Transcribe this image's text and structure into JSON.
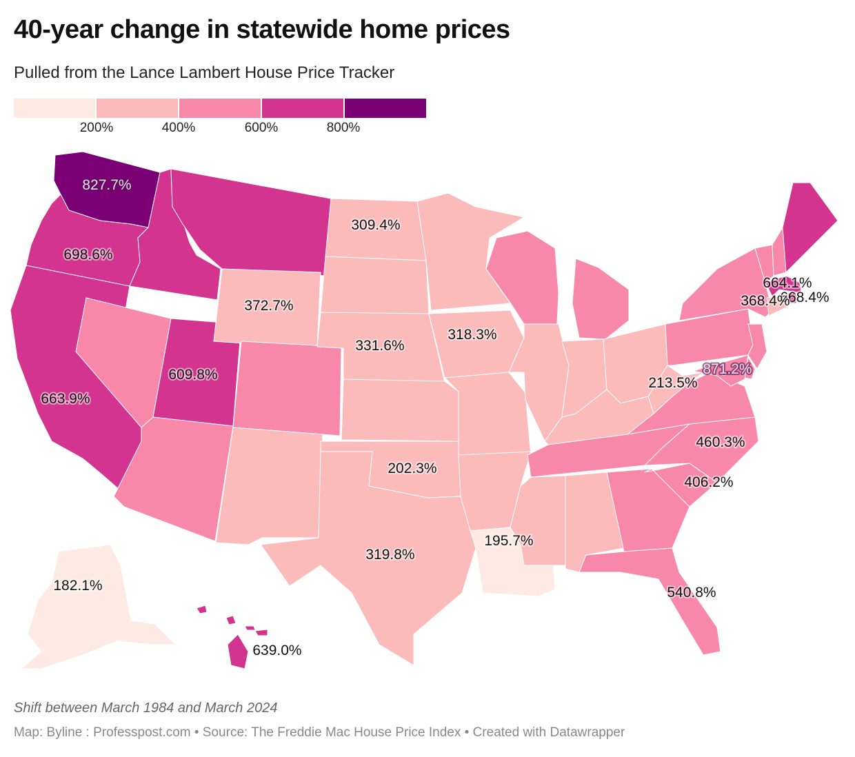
{
  "header": {
    "title": "40-year change in statewide home prices",
    "subtitle": "Pulled from the Lance Lambert House Price Tracker"
  },
  "legend": {
    "bins": [
      {
        "color": "#fdebe3"
      },
      {
        "color": "#fbbbbb"
      },
      {
        "color": "#f788aa"
      },
      {
        "color": "#d3348f"
      },
      {
        "color": "#7b0076"
      }
    ],
    "labels": [
      "200%",
      "400%",
      "600%",
      "800%"
    ]
  },
  "chart_data": {
    "type": "choropleth",
    "title": "40-year change in statewide home prices",
    "subtitle": "Pulled from the Lance Lambert House Price Tracker",
    "unit": "%",
    "bins": [
      0,
      200,
      400,
      600,
      800,
      1000
    ],
    "legend_position": "top-left",
    "labeled_values": [
      {
        "state": "Washington",
        "value": 827.7,
        "label": "827.7%"
      },
      {
        "state": "Oregon",
        "value": 698.6,
        "label": "698.6%"
      },
      {
        "state": "California",
        "value": 663.9,
        "label": "663.9%"
      },
      {
        "state": "Utah",
        "value": 609.8,
        "label": "609.8%"
      },
      {
        "state": "Wyoming",
        "value": 372.7,
        "label": "372.7%"
      },
      {
        "state": "North Dakota",
        "value": 309.4,
        "label": "309.4%"
      },
      {
        "state": "Nebraska",
        "value": 331.6,
        "label": "331.6%"
      },
      {
        "state": "Iowa",
        "value": 318.3,
        "label": "318.3%"
      },
      {
        "state": "Oklahoma",
        "value": 202.3,
        "label": "202.3%"
      },
      {
        "state": "Texas",
        "value": 319.8,
        "label": "319.8%"
      },
      {
        "state": "Louisiana",
        "value": 195.7,
        "label": "195.7%"
      },
      {
        "state": "West Virginia",
        "value": 213.5,
        "label": "213.5%"
      },
      {
        "state": "District of Columbia",
        "value": 871.2,
        "label": "871.2%"
      },
      {
        "state": "North Carolina",
        "value": 460.3,
        "label": "460.3%"
      },
      {
        "state": "South Carolina",
        "value": 406.2,
        "label": "406.2%"
      },
      {
        "state": "Florida",
        "value": 540.8,
        "label": "540.8%"
      },
      {
        "state": "Massachusetts",
        "value": 664.1,
        "label": "664.1%"
      },
      {
        "state": "Rhode Island",
        "value": 668.4,
        "label": "668.4%"
      },
      {
        "state": "Connecticut",
        "value": 368.4,
        "label": "368.4%"
      },
      {
        "state": "Alaska",
        "value": 182.1,
        "label": "182.1%"
      },
      {
        "state": "Hawaii",
        "value": 639.0,
        "label": "639.0%"
      }
    ],
    "bin_by_state": {
      "WA": 4,
      "OR": 3,
      "CA": 3,
      "ID": 3,
      "MT": 3,
      "NV": 2,
      "UT": 3,
      "AZ": 2,
      "WY": 1,
      "CO": 2,
      "NM": 1,
      "ND": 1,
      "SD": 1,
      "NE": 1,
      "KS": 1,
      "OK": 1,
      "TX": 1,
      "MN": 1,
      "IA": 1,
      "MO": 1,
      "AR": 1,
      "LA": 0,
      "WI": 2,
      "IL": 1,
      "MI": 2,
      "IN": 1,
      "OH": 1,
      "KY": 1,
      "TN": 2,
      "MS": 1,
      "AL": 1,
      "GA": 2,
      "FL": 2,
      "SC": 2,
      "NC": 2,
      "VA": 2,
      "WV": 1,
      "PA": 2,
      "NY": 2,
      "VT": 2,
      "NH": 2,
      "ME": 3,
      "MA": 3,
      "RI": 3,
      "CT": 1,
      "NJ": 2,
      "DE": 2,
      "MD": 2,
      "DC": 4,
      "AK": 0,
      "HI": 3
    }
  },
  "notes": "Shift between March 1984 and March 2024",
  "footer": "Map: Byline : Professpost.com  • Source: The Freddie Mac House Price Index • Created with Datawrapper"
}
